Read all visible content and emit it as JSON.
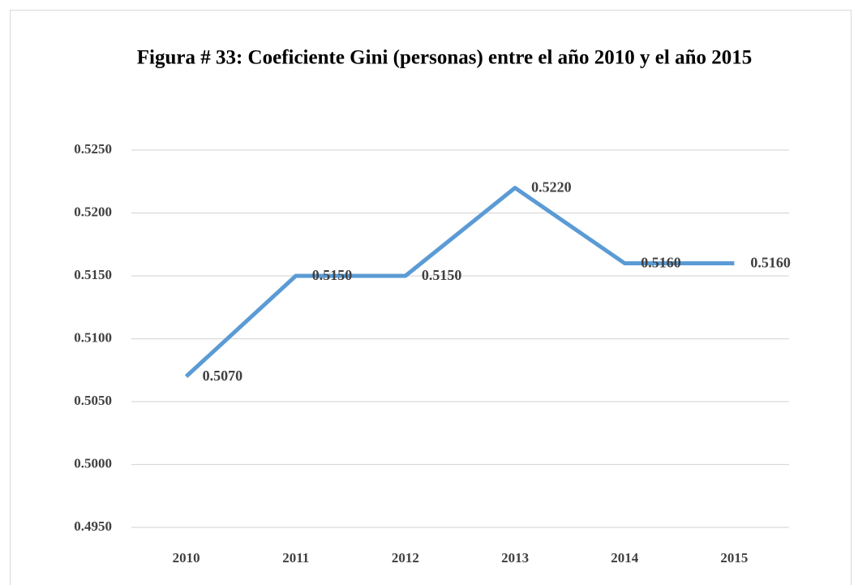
{
  "chart_data": {
    "type": "line",
    "title": "Figura # 33: Coeficiente Gini (personas) entre el año 2010 y el año 2015",
    "categories": [
      "2010",
      "2011",
      "2012",
      "2013",
      "2014",
      "2015"
    ],
    "series": [
      {
        "name": "Coeficiente Gini",
        "color": "#5b9bd5",
        "values": [
          0.507,
          0.515,
          0.515,
          0.522,
          0.516,
          0.516
        ],
        "value_labels": [
          "0.5070",
          "0.5150",
          "0.5150",
          "0.5220",
          "0.5160",
          "0.5160"
        ]
      }
    ],
    "ylim": [
      0.495,
      0.525
    ],
    "yticks": [
      {
        "value": 0.495,
        "label": "0.4950"
      },
      {
        "value": 0.5,
        "label": "0.5000"
      },
      {
        "value": 0.505,
        "label": "0.5050"
      },
      {
        "value": 0.51,
        "label": "0.5100"
      },
      {
        "value": 0.515,
        "label": "0.5150"
      },
      {
        "value": 0.52,
        "label": "0.5200"
      },
      {
        "value": 0.525,
        "label": "0.5250"
      }
    ],
    "grid": true
  }
}
